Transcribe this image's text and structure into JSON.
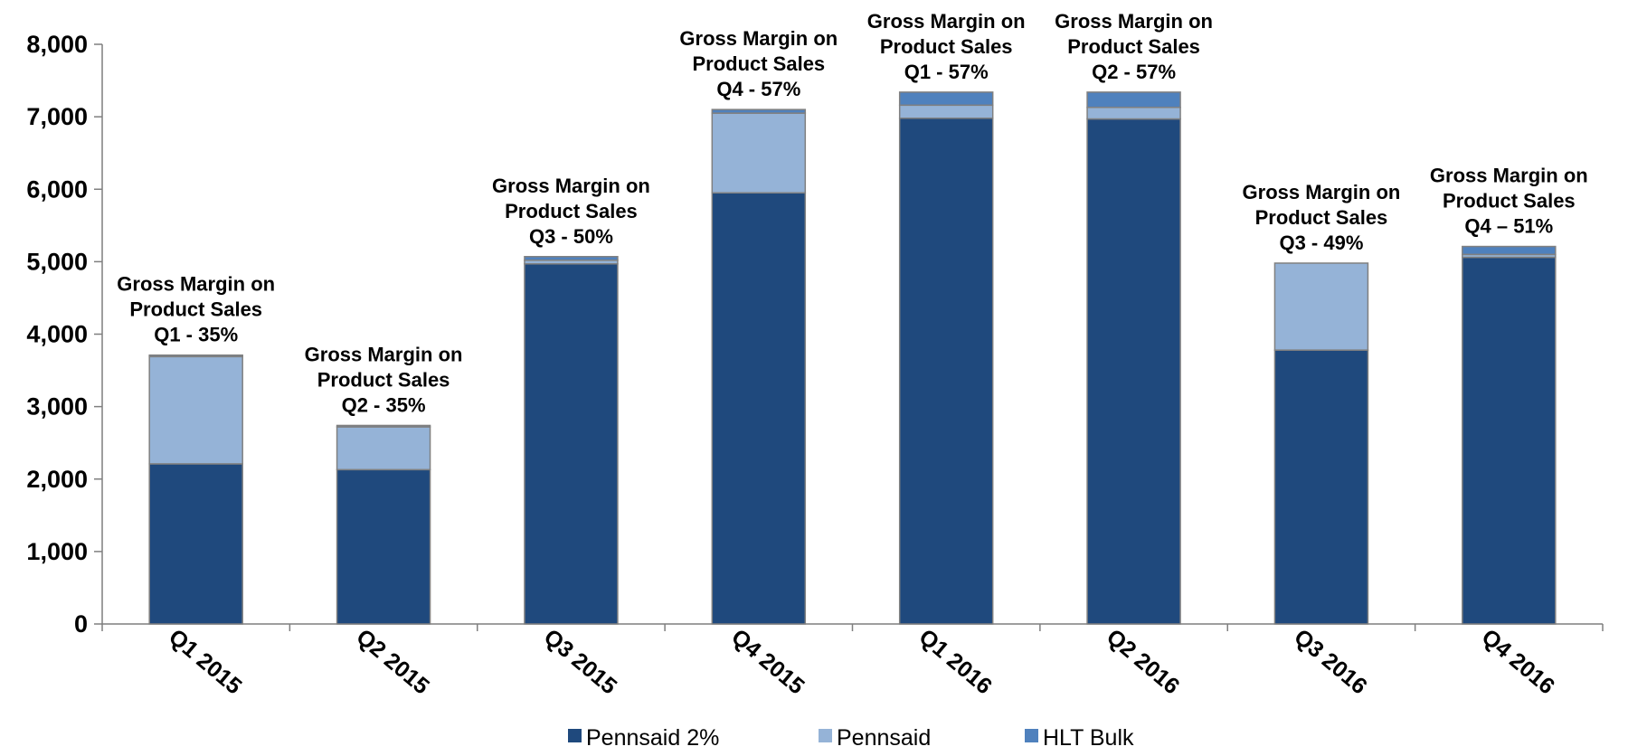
{
  "chart_data": {
    "type": "bar",
    "stacked": true,
    "categories": [
      "Q1 2015",
      "Q2 2015",
      "Q3 2015",
      "Q4 2015",
      "Q1 2016",
      "Q2 2016",
      "Q3 2016",
      "Q4 2016"
    ],
    "series": [
      {
        "name": "Pennsaid 2%",
        "color": "#1f497d",
        "values": [
          2210,
          2130,
          4970,
          5950,
          6980,
          6970,
          3780,
          5060
        ]
      },
      {
        "name": "Pennsaid",
        "color": "#95b3d7",
        "values": [
          1480,
          590,
          50,
          1100,
          180,
          160,
          1200,
          40
        ]
      },
      {
        "name": "HLT Bulk",
        "color": "#4f81bd",
        "values": [
          20,
          20,
          50,
          50,
          180,
          210,
          0,
          110
        ]
      }
    ],
    "annotations": [
      [
        "Gross Margin on",
        "Product Sales",
        "Q1 - 35%"
      ],
      [
        "Gross Margin on",
        "Product Sales",
        "Q2 - 35%"
      ],
      [
        "Gross Margin on",
        "Product Sales",
        "Q3 - 50%"
      ],
      [
        "Gross Margin on",
        "Product Sales",
        "Q4 - 57%"
      ],
      [
        "Gross Margin on",
        "Product Sales",
        "Q1 - 57%"
      ],
      [
        "Gross Margin on",
        "Product Sales",
        "Q2 - 57%"
      ],
      [
        "Gross Margin on",
        "Product Sales",
        "Q3 - 49%"
      ],
      [
        "Gross Margin on",
        "Product Sales",
        "Q4 – 51%"
      ]
    ],
    "yticks": [
      "0",
      "1,000",
      "2,000",
      "3,000",
      "4,000",
      "5,000",
      "6,000",
      "7,000",
      "8,000"
    ],
    "ylim": [
      0,
      8000
    ],
    "legend_position": "bottom",
    "grid": false
  }
}
